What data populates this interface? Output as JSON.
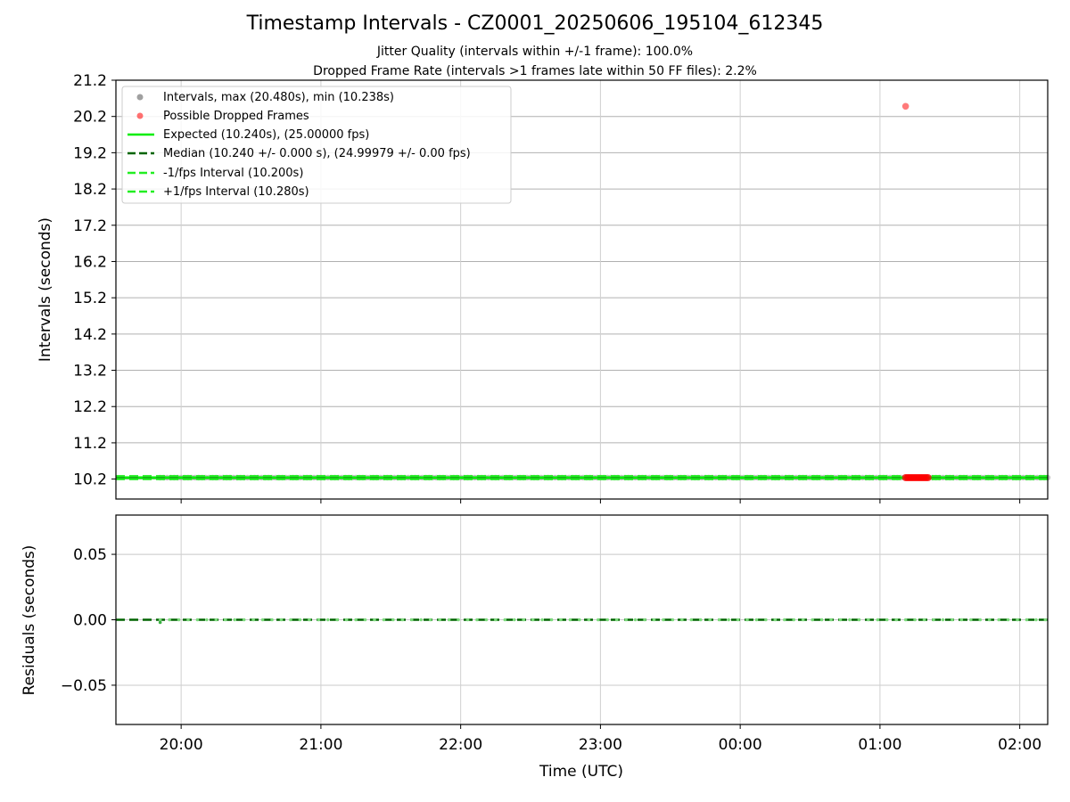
{
  "figure": {
    "title": "Timestamp Intervals - CZ0001_20250606_195104_612345",
    "subtitle_1": "Jitter Quality (intervals within +/-1 frame): 100.0%",
    "subtitle_2": "Dropped Frame Rate (intervals >1 frames late within 50 FF files): 2.2%"
  },
  "chart_data": [
    {
      "type": "scatter",
      "panel": "intervals",
      "ylabel": "Intervals (seconds)",
      "xlabel": "",
      "xlim": [
        "19:32",
        "02:12"
      ],
      "ylim": [
        9.65,
        21.2
      ],
      "yticks": [
        "10.2",
        "11.2",
        "12.2",
        "13.2",
        "14.2",
        "15.2",
        "16.2",
        "17.2",
        "18.2",
        "19.2",
        "20.2",
        "21.2"
      ],
      "xticks": [
        "20:00",
        "21:00",
        "22:00",
        "23:00",
        "00:00",
        "01:00",
        "02:00"
      ],
      "grid": true,
      "legend_position": "top-left",
      "series": [
        {
          "name": "Intervals, max (20.480s), min (10.238s)",
          "color": "#a0a0a0",
          "style": "points",
          "x_range": [
            "19:51",
            "02:12"
          ],
          "y": 10.24
        },
        {
          "name": "Possible Dropped Frames",
          "color": "#ff3333",
          "style": "points",
          "points": [
            {
              "x": "01:11",
              "y": 20.48
            }
          ],
          "cluster": {
            "x_range": [
              "01:11",
              "01:21"
            ],
            "y": 10.24
          }
        },
        {
          "name": "Expected (10.240s), (25.00000 fps)",
          "color": "#00ee00",
          "style": "solid",
          "y": 10.24
        },
        {
          "name": "Median (10.240 +/- 0.000 s), (24.99979 +/- 0.00 fps)",
          "color": "#006400",
          "style": "dashed",
          "y": 10.24
        },
        {
          "name": "-1/fps Interval (10.200s)",
          "color": "#22ee22",
          "style": "dashed",
          "y": 10.2
        },
        {
          "name": "+1/fps Interval (10.280s)",
          "color": "#22ee22",
          "style": "dashed",
          "y": 10.28
        }
      ]
    },
    {
      "type": "line",
      "panel": "residuals",
      "ylabel": "Residuals (seconds)",
      "xlabel": "Time (UTC)",
      "xlim": [
        "19:32",
        "02:12"
      ],
      "ylim": [
        -0.08,
        0.08
      ],
      "yticks": [
        "0.05",
        "0.00",
        "−0.05"
      ],
      "ytick_values": [
        0.05,
        0.0,
        -0.05
      ],
      "xticks": [
        "20:00",
        "21:00",
        "22:00",
        "23:00",
        "00:00",
        "01:00",
        "02:00"
      ],
      "grid": true,
      "series": [
        {
          "color": "#006400",
          "style": "dashed",
          "y": 0.0
        },
        {
          "color": "#3cb043",
          "style": "points",
          "x_range": [
            "19:51",
            "02:12"
          ],
          "y": 0.0,
          "min_point": {
            "x": "19:51",
            "y": -0.002
          }
        }
      ]
    }
  ]
}
